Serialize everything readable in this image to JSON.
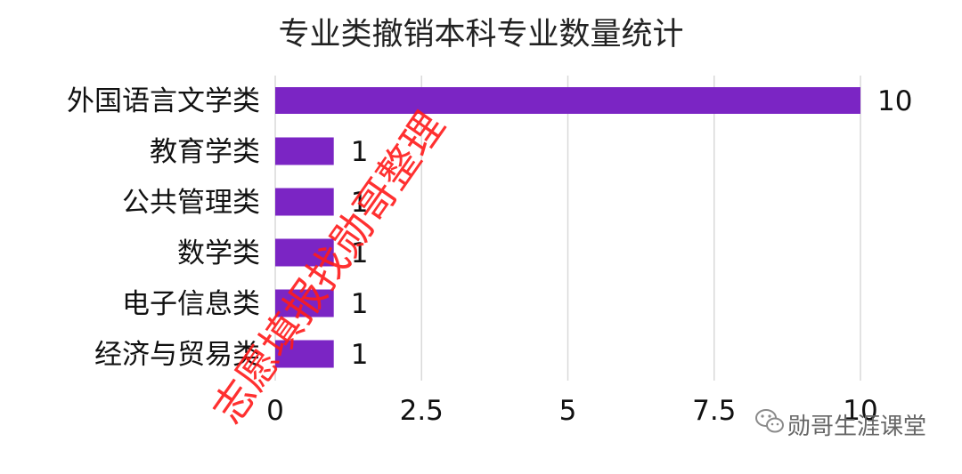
{
  "chart_data": {
    "type": "bar",
    "orientation": "horizontal",
    "title": "专业类撤销本科专业数量统计",
    "categories": [
      "外国语言文学类",
      "教育学类",
      "公共管理类",
      "数学类",
      "电子信息类",
      "经济与贸易类"
    ],
    "values": [
      10,
      1,
      1,
      1,
      1,
      1
    ],
    "xlim": [
      0,
      10
    ],
    "x_ticks": [
      0,
      2.5,
      5,
      7.5,
      10
    ],
    "x_tick_labels": [
      "0",
      "2.5",
      "5",
      "7.5",
      "10"
    ],
    "grid": true,
    "bar_color": "#7b25c4",
    "data_labels": [
      "10",
      "1",
      "1",
      "1",
      "1",
      "1"
    ]
  },
  "watermark": {
    "text": "志愿填报找勋哥整理",
    "color": "#ff1a1a"
  },
  "brand": {
    "icon": "wechat-icon",
    "text": "勋哥生涯课堂"
  }
}
